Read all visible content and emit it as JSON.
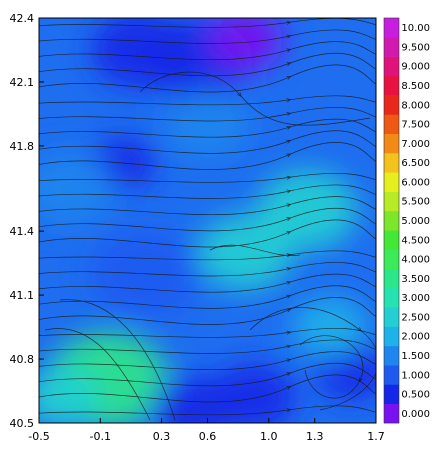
{
  "chart_data": {
    "type": "heatmap",
    "subtype": "filled contour with streamlines",
    "title": "",
    "xlabel": "",
    "ylabel": "",
    "xlim": [
      -0.5,
      1.7
    ],
    "ylim": [
      40.5,
      42.4
    ],
    "x_ticks": [
      "-0.5",
      "-0.1",
      "0.3",
      "0.6",
      "1.0",
      "1.3",
      "1.7"
    ],
    "y_ticks": [
      "40.5",
      "40.8",
      "41.1",
      "41.4",
      "41.8",
      "42.1",
      "42.4"
    ],
    "colorbar": {
      "labels": [
        "0.000",
        "0.500",
        "1.000",
        "1.500",
        "2.000",
        "2.500",
        "3.000",
        "3.500",
        "4.000",
        "4.500",
        "5.000",
        "5.500",
        "6.000",
        "6.500",
        "7.000",
        "7.500",
        "8.000",
        "8.500",
        "9.000",
        "9.500",
        "10.00"
      ],
      "colors": [
        "#7a12ef",
        "#1426e6",
        "#1e5af0",
        "#1f86ee",
        "#1fb2e8",
        "#23cfd2",
        "#26e2b0",
        "#2ee68a",
        "#3cea5a",
        "#42e835",
        "#7ee62a",
        "#b8ea25",
        "#e6ee20",
        "#f3c21c",
        "#f28a18",
        "#ee5a16",
        "#e8281a",
        "#e81240",
        "#e0137a",
        "#d419b0",
        "#c81ee0"
      ]
    },
    "field_regions": [
      {
        "x": 0.15,
        "y": 42.25,
        "value": 0.5
      },
      {
        "x": 0.55,
        "y": 42.2,
        "value": 0.3
      },
      {
        "x": 0.85,
        "y": 42.3,
        "value": 0.2
      },
      {
        "x": 0.05,
        "y": 41.72,
        "value": 0.3
      },
      {
        "x": -0.05,
        "y": 40.7,
        "value": 3.4
      },
      {
        "x": -0.35,
        "y": 40.62,
        "value": 2.6
      },
      {
        "x": 0.2,
        "y": 41.2,
        "value": 1.0
      },
      {
        "x": 1.25,
        "y": 41.5,
        "value": 2.6
      },
      {
        "x": 0.85,
        "y": 41.3,
        "value": 2.3
      },
      {
        "x": 0.9,
        "y": 40.62,
        "value": 0.3
      },
      {
        "x": 1.55,
        "y": 40.75,
        "value": 0.4
      },
      {
        "x": 0.5,
        "y": 40.56,
        "value": 0.7
      },
      {
        "x": 1.4,
        "y": 40.95,
        "value": 2.0
      },
      {
        "x": -0.3,
        "y": 41.6,
        "value": 1.6
      },
      {
        "x": 0.6,
        "y": 41.9,
        "value": 1.5
      }
    ]
  }
}
